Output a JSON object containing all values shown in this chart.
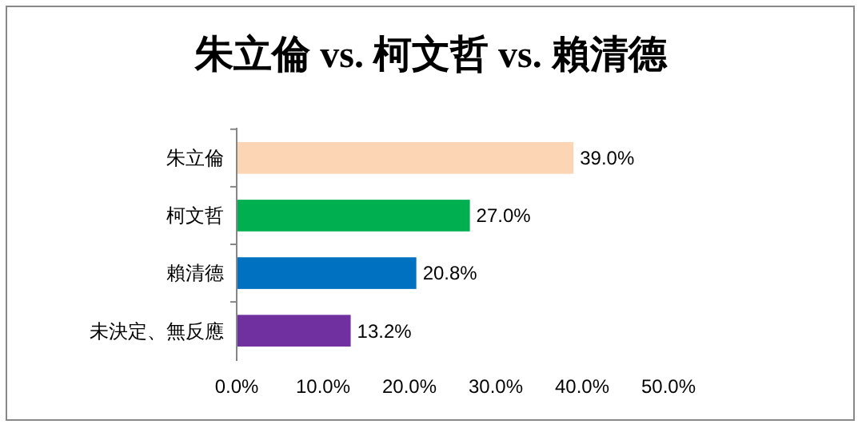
{
  "chart_data": {
    "type": "bar",
    "orientation": "horizontal",
    "title": "朱立倫 vs. 柯文哲 vs. 賴清德",
    "categories": [
      "朱立倫",
      "柯文哲",
      "賴清德",
      "未決定、無反應"
    ],
    "values": [
      39.0,
      27.0,
      20.8,
      13.2
    ],
    "colors": [
      "#fcd5b5",
      "#00b050",
      "#0070c0",
      "#7030a0"
    ],
    "value_labels": [
      "39.0%",
      "27.0%",
      "20.8%",
      "13.2%"
    ],
    "xlim": [
      0,
      50
    ],
    "xticks": [
      {
        "value": 0,
        "label": "0.0%"
      },
      {
        "value": 10,
        "label": "10.0%"
      },
      {
        "value": 20,
        "label": "20.0%"
      },
      {
        "value": 30,
        "label": "30.0%"
      },
      {
        "value": 40,
        "label": "40.0%"
      },
      {
        "value": 50,
        "label": "50.0%"
      }
    ],
    "grid": false
  }
}
